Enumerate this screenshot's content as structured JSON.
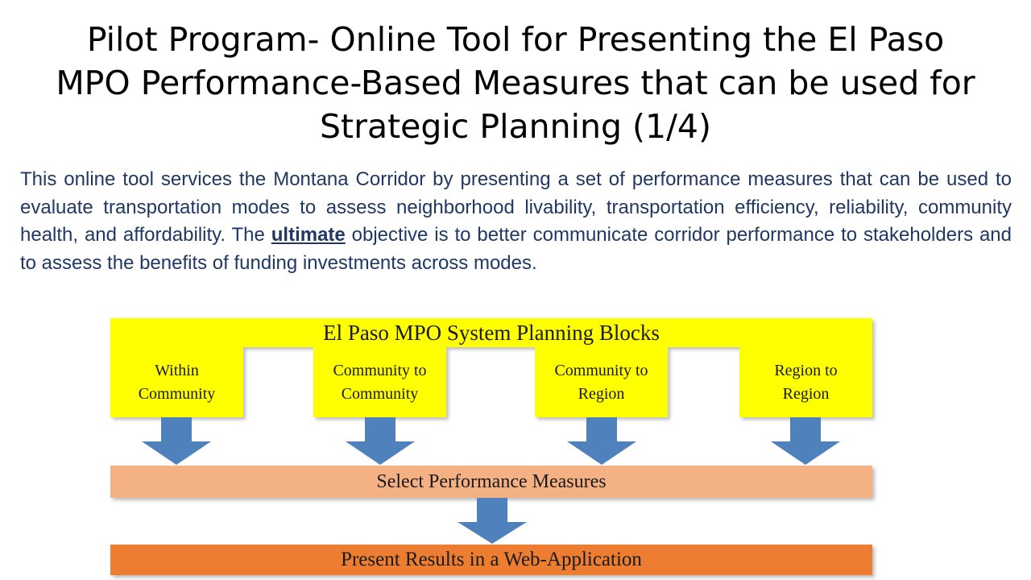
{
  "title": {
    "line1": "Pilot Program- Online Tool for Presenting the El Paso",
    "line2": "MPO Performance-Based Measures that can be used for",
    "line3": "Strategic Planning (1/4)"
  },
  "intro": {
    "before": "This online tool services the Montana Corridor by presenting a set of performance measures that can be used to evaluate transportation modes to assess neighborhood livability, transportation efficiency, reliability, community health, and affordability. The ",
    "emphasis": "ultimate",
    "after": " objective is to better communicate corridor performance to stakeholders and to assess the benefits of funding investments across modes."
  },
  "diagram": {
    "header": "El Paso MPO System Planning Blocks",
    "blocks": [
      {
        "line1": "Within",
        "line2": "Community"
      },
      {
        "line1": "Community to",
        "line2": "Community"
      },
      {
        "line1": "Community to",
        "line2": "Region"
      },
      {
        "line1": "Region to",
        "line2": "Region"
      }
    ],
    "select": "Select Performance Measures",
    "present": "Present Results in a Web-Application"
  },
  "colors": {
    "title_text": "#000000",
    "intro_text": "#1f3864",
    "planning_blocks": "#ffff00",
    "select_box": "#f4b183",
    "present_box": "#ed7d31",
    "arrows": "#4f81bd"
  }
}
